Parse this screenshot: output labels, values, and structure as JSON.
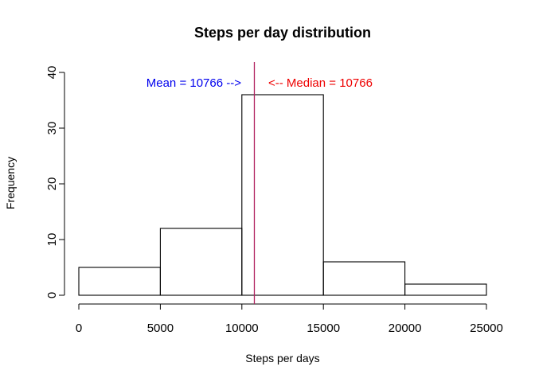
{
  "chart_data": {
    "type": "bar",
    "title": "Steps per day distribution",
    "xlabel": "Steps per days",
    "ylabel": "Frequency",
    "bins": [
      {
        "from": 0,
        "to": 5000,
        "count": 5
      },
      {
        "from": 5000,
        "to": 10000,
        "count": 12
      },
      {
        "from": 10000,
        "to": 15000,
        "count": 36
      },
      {
        "from": 15000,
        "to": 20000,
        "count": 6
      },
      {
        "from": 20000,
        "to": 25000,
        "count": 2
      }
    ],
    "xlim": [
      0,
      25000
    ],
    "ylim": [
      0,
      40
    ],
    "x_ticks": [
      "0",
      "5000",
      "10000",
      "15000",
      "20000",
      "25000"
    ],
    "y_ticks": [
      "0",
      "10",
      "20",
      "30",
      "40"
    ],
    "mean": 10766,
    "median": 10766,
    "mean_label": "Mean =  10766  -->",
    "median_label": "<-- Median =  10766",
    "colors": {
      "mean": "#0000ee",
      "median": "#ee0000",
      "vline": "#b0205e"
    },
    "grid": false,
    "legend": "none"
  }
}
